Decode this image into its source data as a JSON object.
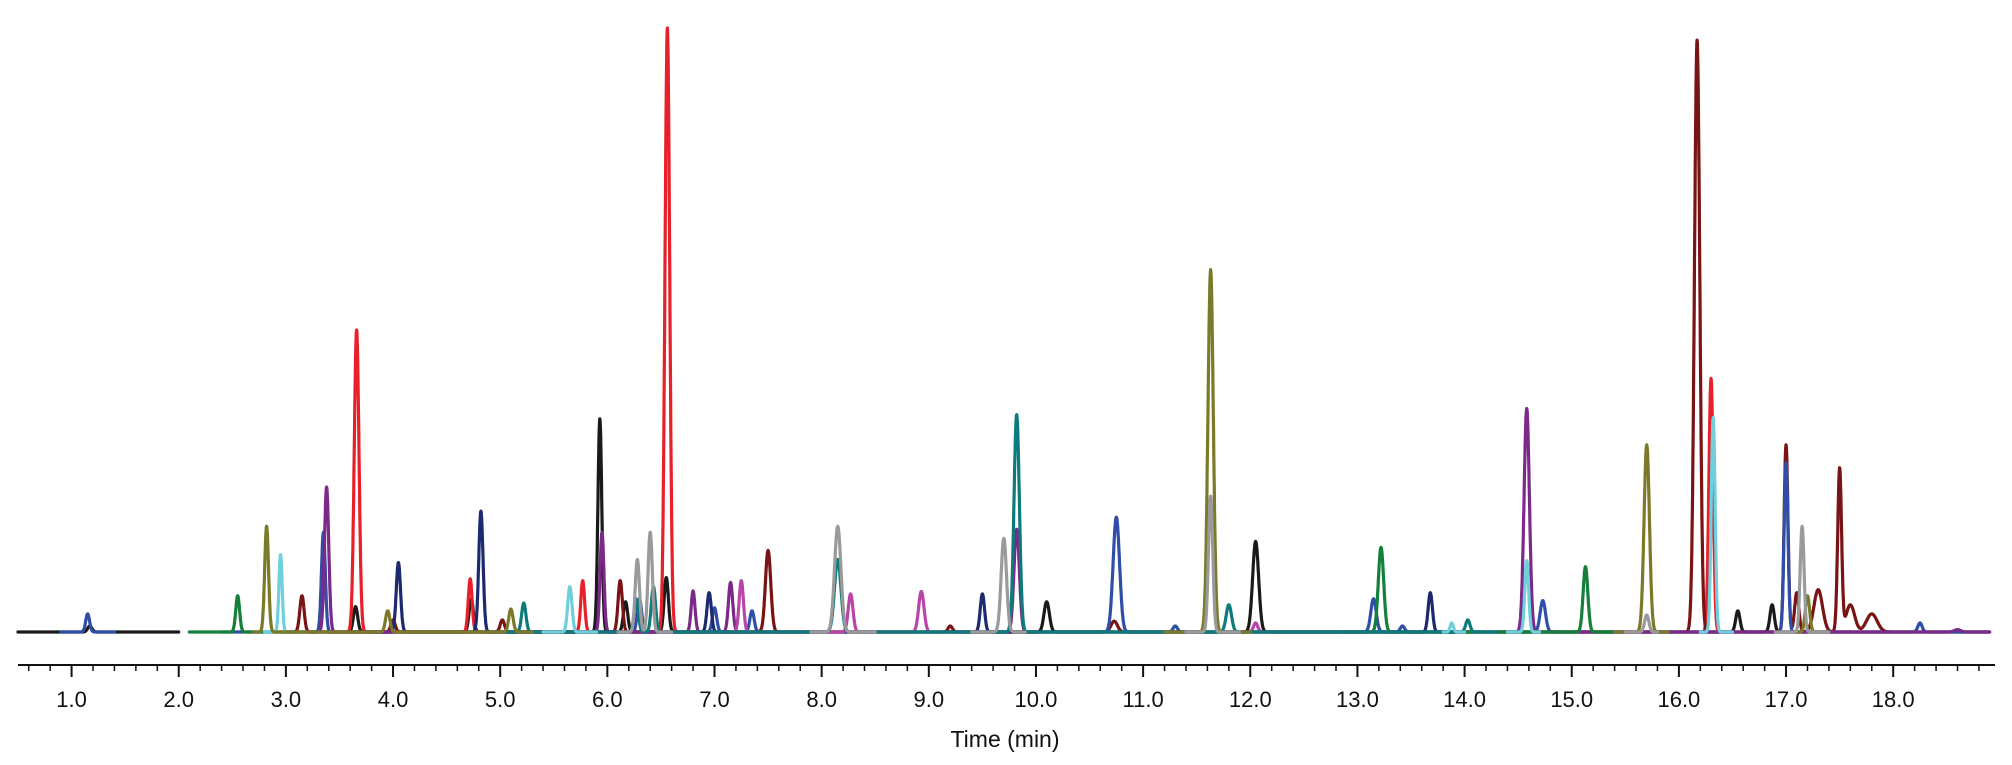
{
  "chart_data": {
    "type": "line",
    "title": "",
    "xlabel": "Time (min)",
    "ylabel": "",
    "xlim": [
      0.5,
      18.95
    ],
    "ylim": [
      0,
      100
    ],
    "x_ticks": [
      1.0,
      2.0,
      3.0,
      4.0,
      5.0,
      6.0,
      7.0,
      8.0,
      9.0,
      10.0,
      11.0,
      12.0,
      13.0,
      14.0,
      15.0,
      16.0,
      17.0,
      18.0
    ],
    "x_tick_labels": [
      "1.0",
      "2.0",
      "3.0",
      "4.0",
      "5.0",
      "6.0",
      "7.0",
      "8.0",
      "9.0",
      "10.0",
      "11.0",
      "12.0",
      "13.0",
      "14.0",
      "15.0",
      "16.0",
      "17.0",
      "18.0"
    ],
    "minor_tick_step": 0.2,
    "y_axis_visible": false,
    "grid": false,
    "legend": "none",
    "series": [
      {
        "color": "#1a1a1a",
        "segments": [
          [
            0.5,
            2.0
          ],
          [
            3.0,
            18.9
          ]
        ],
        "peaks": [
          {
            "x": 1.17,
            "y": 1.0,
            "w": 0.02
          },
          {
            "x": 2.95,
            "y": 4.8,
            "w": 0.018
          },
          {
            "x": 3.65,
            "y": 4.2,
            "w": 0.02
          },
          {
            "x": 4.73,
            "y": 5.5,
            "w": 0.02
          },
          {
            "x": 5.93,
            "y": 35.3,
            "w": 0.018
          },
          {
            "x": 6.17,
            "y": 5.0,
            "w": 0.02
          },
          {
            "x": 6.55,
            "y": 9.0,
            "w": 0.02
          },
          {
            "x": 10.1,
            "y": 5.0,
            "w": 0.025
          },
          {
            "x": 12.05,
            "y": 15.0,
            "w": 0.028
          },
          {
            "x": 16.55,
            "y": 3.5,
            "w": 0.02
          },
          {
            "x": 16.87,
            "y": 4.5,
            "w": 0.02
          }
        ]
      },
      {
        "color": "#e8202a",
        "segments": [
          [
            3.4,
            7.6
          ],
          [
            16.2,
            16.5
          ]
        ],
        "peaks": [
          {
            "x": 3.66,
            "y": 50.0,
            "w": 0.022
          },
          {
            "x": 4.72,
            "y": 8.8,
            "w": 0.018
          },
          {
            "x": 5.77,
            "y": 8.5,
            "w": 0.018
          },
          {
            "x": 6.56,
            "y": 100.0,
            "w": 0.022
          },
          {
            "x": 16.3,
            "y": 42.0,
            "w": 0.02
          }
        ]
      },
      {
        "color": "#7a1414",
        "segments": [
          [
            3.0,
            18.0
          ]
        ],
        "peaks": [
          {
            "x": 3.15,
            "y": 6.0,
            "w": 0.02
          },
          {
            "x": 4.0,
            "y": 2.0,
            "w": 0.02
          },
          {
            "x": 5.02,
            "y": 2.0,
            "w": 0.02
          },
          {
            "x": 6.12,
            "y": 8.5,
            "w": 0.02
          },
          {
            "x": 7.5,
            "y": 13.5,
            "w": 0.025
          },
          {
            "x": 9.2,
            "y": 1.0,
            "w": 0.02
          },
          {
            "x": 10.73,
            "y": 1.8,
            "w": 0.03
          },
          {
            "x": 16.17,
            "y": 98.0,
            "w": 0.025
          },
          {
            "x": 17.0,
            "y": 31.0,
            "w": 0.018
          },
          {
            "x": 17.1,
            "y": 6.5,
            "w": 0.02
          },
          {
            "x": 17.3,
            "y": 7.0,
            "w": 0.04
          },
          {
            "x": 17.5,
            "y": 27.0,
            "w": 0.018
          },
          {
            "x": 17.6,
            "y": 4.5,
            "w": 0.04
          },
          {
            "x": 17.8,
            "y": 3.0,
            "w": 0.05
          }
        ]
      },
      {
        "color": "#2e4ea8",
        "segments": [
          [
            0.9,
            1.4
          ],
          [
            2.4,
            18.9
          ]
        ],
        "peaks": [
          {
            "x": 1.15,
            "y": 3.0,
            "w": 0.018
          },
          {
            "x": 3.35,
            "y": 16.5,
            "w": 0.018
          },
          {
            "x": 6.3,
            "y": 5.5,
            "w": 0.02
          },
          {
            "x": 7.0,
            "y": 4.0,
            "w": 0.02
          },
          {
            "x": 7.35,
            "y": 3.5,
            "w": 0.02
          },
          {
            "x": 10.75,
            "y": 19.0,
            "w": 0.03
          },
          {
            "x": 11.3,
            "y": 1.0,
            "w": 0.02
          },
          {
            "x": 13.15,
            "y": 5.5,
            "w": 0.025
          },
          {
            "x": 13.42,
            "y": 1.0,
            "w": 0.02
          },
          {
            "x": 14.73,
            "y": 5.2,
            "w": 0.025
          },
          {
            "x": 17.0,
            "y": 28.0,
            "w": 0.018
          },
          {
            "x": 18.25,
            "y": 1.5,
            "w": 0.02
          }
        ]
      },
      {
        "color": "#1e2a70",
        "segments": [
          [
            3.6,
            8.0
          ],
          [
            9.2,
            13.9
          ]
        ],
        "peaks": [
          {
            "x": 4.05,
            "y": 11.5,
            "w": 0.02
          },
          {
            "x": 4.82,
            "y": 20.0,
            "w": 0.02
          },
          {
            "x": 6.95,
            "y": 6.5,
            "w": 0.02
          },
          {
            "x": 9.5,
            "y": 6.3,
            "w": 0.02
          },
          {
            "x": 13.68,
            "y": 6.5,
            "w": 0.02
          }
        ]
      },
      {
        "color": "#7b2a88",
        "segments": [
          [
            3.2,
            7.3
          ],
          [
            9.6,
            10.0
          ],
          [
            14.3,
            18.9
          ]
        ],
        "peaks": [
          {
            "x": 3.38,
            "y": 24.0,
            "w": 0.02
          },
          {
            "x": 5.95,
            "y": 16.5,
            "w": 0.018
          },
          {
            "x": 6.8,
            "y": 6.8,
            "w": 0.018
          },
          {
            "x": 7.15,
            "y": 8.2,
            "w": 0.02
          },
          {
            "x": 9.82,
            "y": 17.0,
            "w": 0.025
          },
          {
            "x": 14.58,
            "y": 37.0,
            "w": 0.025
          },
          {
            "x": 18.6,
            "y": 0.4,
            "w": 0.03
          }
        ]
      },
      {
        "color": "#b845a8",
        "segments": [
          [
            6.9,
            9.5
          ],
          [
            11.8,
            12.3
          ]
        ],
        "peaks": [
          {
            "x": 7.25,
            "y": 8.5,
            "w": 0.02
          },
          {
            "x": 8.27,
            "y": 6.3,
            "w": 0.022
          },
          {
            "x": 8.93,
            "y": 6.7,
            "w": 0.025
          },
          {
            "x": 12.05,
            "y": 1.5,
            "w": 0.02
          }
        ]
      },
      {
        "color": "#15803a",
        "segments": [
          [
            2.1,
            3.0
          ],
          [
            12.9,
            15.4
          ]
        ],
        "peaks": [
          {
            "x": 2.55,
            "y": 6.0,
            "w": 0.018
          },
          {
            "x": 13.22,
            "y": 14.0,
            "w": 0.025
          },
          {
            "x": 15.13,
            "y": 9.0,
            "w": 0.022
          },
          {
            "x": 15.12,
            "y": 2.0,
            "w": 0.02
          }
        ]
      },
      {
        "color": "#0d7b7b",
        "segments": [
          [
            4.9,
            14.3
          ]
        ],
        "peaks": [
          {
            "x": 5.22,
            "y": 4.8,
            "w": 0.02
          },
          {
            "x": 6.27,
            "y": 5.5,
            "w": 0.02
          },
          {
            "x": 6.43,
            "y": 7.5,
            "w": 0.02
          },
          {
            "x": 8.15,
            "y": 12.0,
            "w": 0.03
          },
          {
            "x": 9.82,
            "y": 36.0,
            "w": 0.025
          },
          {
            "x": 11.8,
            "y": 4.5,
            "w": 0.025
          },
          {
            "x": 14.03,
            "y": 2.0,
            "w": 0.02
          }
        ]
      },
      {
        "color": "#6fcfdc",
        "segments": [
          [
            2.8,
            3.1
          ],
          [
            5.4,
            5.9
          ],
          [
            13.8,
            14.0
          ],
          [
            14.4,
            14.7
          ],
          [
            16.2,
            16.5
          ]
        ],
        "peaks": [
          {
            "x": 2.95,
            "y": 12.8,
            "w": 0.015
          },
          {
            "x": 5.65,
            "y": 7.5,
            "w": 0.02
          },
          {
            "x": 13.88,
            "y": 1.5,
            "w": 0.015
          },
          {
            "x": 14.58,
            "y": 11.8,
            "w": 0.018
          },
          {
            "x": 16.32,
            "y": 35.5,
            "w": 0.018
          }
        ]
      },
      {
        "color": "#7a7a28",
        "segments": [
          [
            2.7,
            5.3
          ],
          [
            11.2,
            12.0
          ],
          [
            15.4,
            15.9
          ],
          [
            17.1,
            17.4
          ]
        ],
        "peaks": [
          {
            "x": 2.82,
            "y": 17.5,
            "w": 0.018
          },
          {
            "x": 3.95,
            "y": 3.5,
            "w": 0.02
          },
          {
            "x": 5.1,
            "y": 3.8,
            "w": 0.02
          },
          {
            "x": 11.63,
            "y": 60.0,
            "w": 0.025
          },
          {
            "x": 15.7,
            "y": 31.0,
            "w": 0.025
          },
          {
            "x": 17.2,
            "y": 6.0,
            "w": 0.02
          }
        ]
      },
      {
        "color": "#9a9a9a",
        "segments": [
          [
            6.1,
            6.6
          ],
          [
            7.9,
            8.5
          ],
          [
            9.4,
            9.9
          ],
          [
            11.4,
            11.9
          ],
          [
            15.5,
            15.8
          ],
          [
            16.9,
            17.4
          ]
        ],
        "peaks": [
          {
            "x": 6.28,
            "y": 12.0,
            "w": 0.02
          },
          {
            "x": 6.4,
            "y": 16.5,
            "w": 0.02
          },
          {
            "x": 8.15,
            "y": 17.5,
            "w": 0.03
          },
          {
            "x": 9.7,
            "y": 15.5,
            "w": 0.025
          },
          {
            "x": 11.63,
            "y": 22.5,
            "w": 0.02
          },
          {
            "x": 15.7,
            "y": 2.8,
            "w": 0.02
          },
          {
            "x": 17.15,
            "y": 17.5,
            "w": 0.018
          }
        ]
      }
    ]
  }
}
